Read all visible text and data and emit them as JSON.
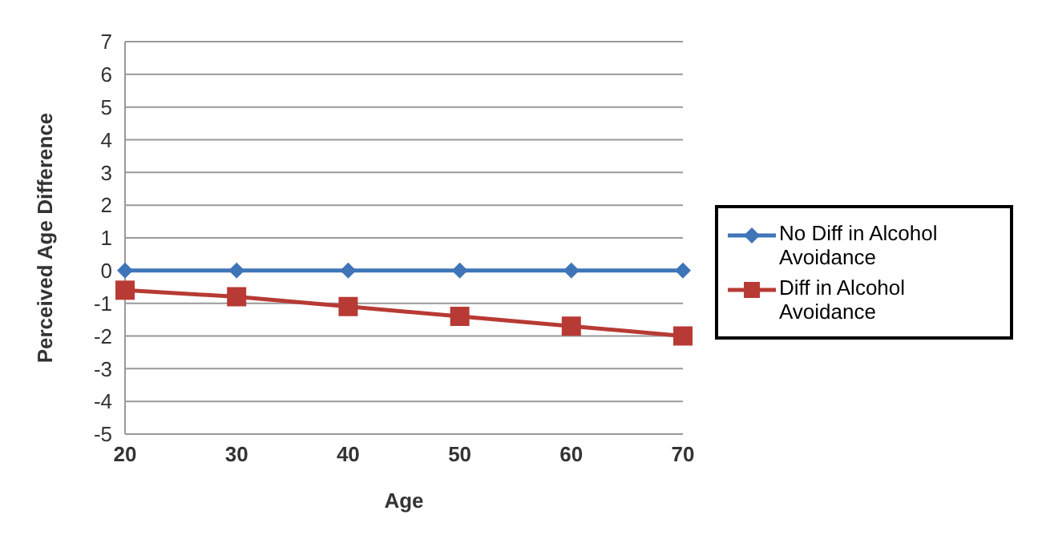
{
  "chart_data": {
    "type": "line",
    "xlabel": "Age",
    "ylabel": "Perceived Age Difference",
    "categories": [
      "20",
      "30",
      "40",
      "50",
      "60",
      "70"
    ],
    "series": [
      {
        "name": "No Diff in Alcohol Avoidance",
        "color": "#3f75b8",
        "marker": "diamond",
        "values": [
          0,
          0,
          0,
          0,
          0,
          0
        ]
      },
      {
        "name": "Diff in Alcohol Avoidance",
        "color": "#b83a34",
        "marker": "square",
        "values": [
          -0.6,
          -0.8,
          -1.1,
          -1.4,
          -1.7,
          -2.0
        ]
      }
    ],
    "ylim": [
      -5,
      7
    ],
    "yticks": [
      -5,
      -4,
      -3,
      -2,
      -1,
      0,
      1,
      2,
      3,
      4,
      5,
      6,
      7
    ],
    "grid": "y",
    "legend": "right",
    "line_style": "solid"
  }
}
